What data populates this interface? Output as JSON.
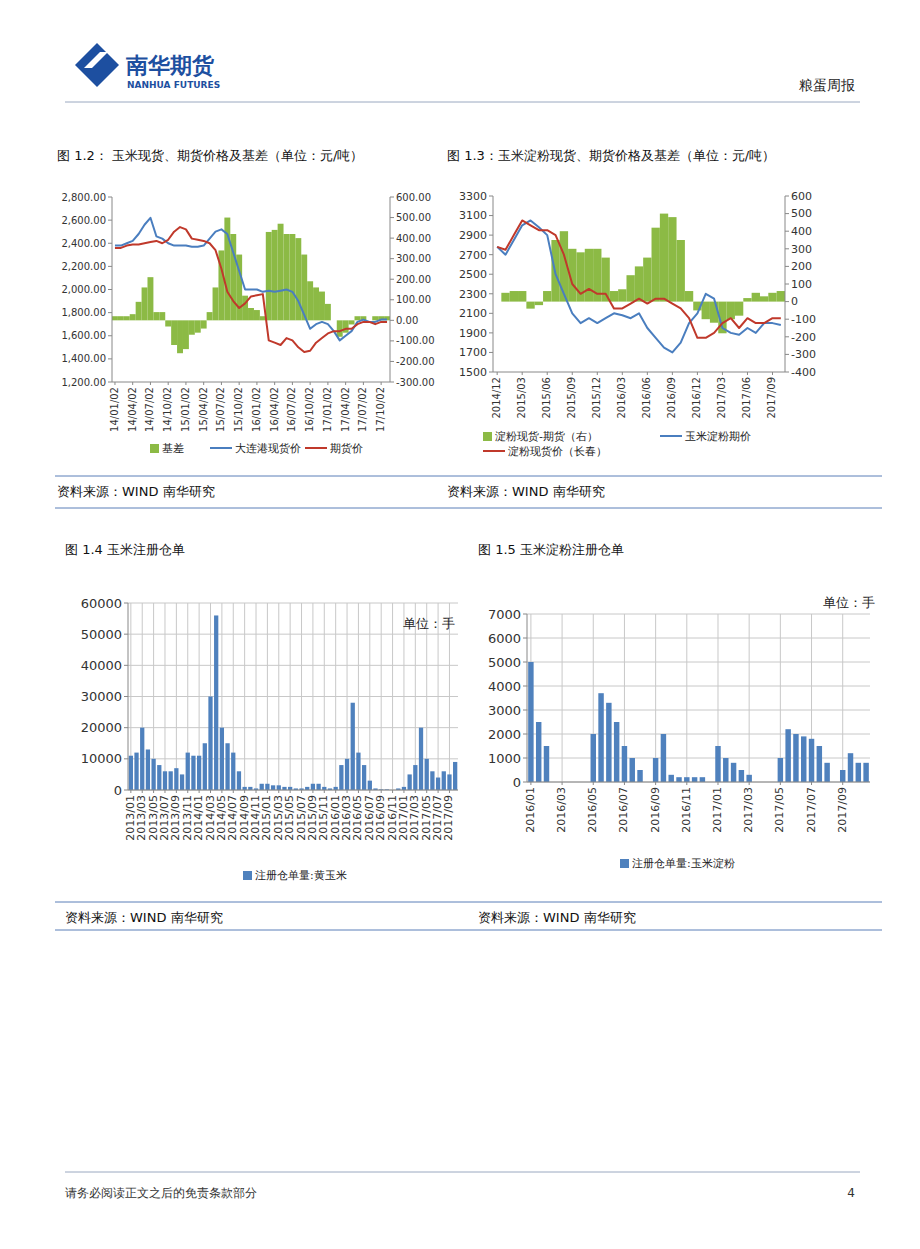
{
  "header": {
    "logo_cn": "南华期货",
    "logo_en": "NANHUA FUTURES",
    "report": "粮蛋周报"
  },
  "footer": {
    "disclaimer": "请务必阅读正文之后的免责条款部分",
    "page": 4
  },
  "chart_data": [
    {
      "type": "line",
      "title": "图 1.2： 玉米现货、期货价格及基差（单位：元/吨）",
      "source": "资料来源：WIND 南华研究",
      "categories": [
        "14/01/02",
        null,
        null,
        "14/04/02",
        null,
        null,
        "14/07/02",
        null,
        null,
        "14/10/02",
        null,
        null,
        "15/01/02",
        null,
        null,
        "15/04/02",
        null,
        null,
        "15/07/02",
        null,
        null,
        "15/10/02",
        null,
        null,
        "16/01/02",
        null,
        null,
        "16/04/02",
        null,
        null,
        "16/07/02",
        null,
        null,
        "16/10/02",
        null,
        null,
        "17/01/02",
        null,
        null,
        "17/04/02",
        null,
        null,
        "17/07/02",
        null,
        null,
        "17/10/02",
        null
      ],
      "series": [
        {
          "name": "基差",
          "type": "bar",
          "axis": "y2",
          "color": "#8cba45",
          "values": [
            20,
            20,
            20,
            30,
            90,
            160,
            210,
            40,
            40,
            -30,
            -120,
            -160,
            -140,
            -70,
            -60,
            -40,
            40,
            160,
            340,
            500,
            420,
            320,
            120,
            60,
            50,
            20,
            430,
            440,
            470,
            420,
            420,
            400,
            320,
            190,
            160,
            140,
            80,
            0,
            -80,
            -60,
            -20,
            20,
            20,
            0,
            20,
            20,
            20
          ]
        },
        {
          "name": "大连港现货价",
          "type": "line",
          "color": "#4a7ebf",
          "values": [
            2380,
            2380,
            2400,
            2420,
            2480,
            2560,
            2620,
            2460,
            2440,
            2400,
            2380,
            2380,
            2380,
            2370,
            2370,
            2380,
            2440,
            2500,
            2520,
            2480,
            2320,
            2160,
            2000,
            2000,
            2000,
            1980,
            1990,
            1980,
            1990,
            2000,
            1980,
            1900,
            1780,
            1660,
            1700,
            1720,
            1700,
            1640,
            1560,
            1600,
            1640,
            1720,
            1740,
            1720,
            1720,
            1740,
            1740
          ]
        },
        {
          "name": "期货价",
          "type": "line",
          "color": "#c0392b",
          "values": [
            2360,
            2360,
            2380,
            2390,
            2390,
            2400,
            2410,
            2420,
            2400,
            2430,
            2500,
            2540,
            2520,
            2440,
            2430,
            2420,
            2400,
            2340,
            2180,
            1980,
            1900,
            1840,
            1880,
            1940,
            1950,
            1960,
            1560,
            1540,
            1520,
            1580,
            1560,
            1500,
            1460,
            1470,
            1540,
            1580,
            1620,
            1640,
            1640,
            1660,
            1660,
            1700,
            1720,
            1720,
            1700,
            1720,
            1720
          ]
        }
      ],
      "ylim": [
        1200,
        2800
      ],
      "yticks": [
        {
          "value": 1200,
          "label": "1,200.00"
        },
        {
          "value": 1400,
          "label": "1,400.00"
        },
        {
          "value": 1600,
          "label": "1,600.00"
        },
        {
          "value": 1800,
          "label": "1,800.00"
        },
        {
          "value": 2000,
          "label": "2,000.00"
        },
        {
          "value": 2200,
          "label": "2,200.00"
        },
        {
          "value": 2400,
          "label": "2,400.00"
        },
        {
          "value": 2600,
          "label": "2,600.00"
        },
        {
          "value": 2800,
          "label": "2,800.00"
        }
      ],
      "y2lim": [
        -300,
        600
      ],
      "y2ticks": [
        {
          "value": -300,
          "label": "-300.00"
        },
        {
          "value": -200,
          "label": "-200.00"
        },
        {
          "value": -100,
          "label": "-100.00"
        },
        {
          "value": 0,
          "label": "0.00"
        },
        {
          "value": 100,
          "label": "100.00"
        },
        {
          "value": 200,
          "label": "200.00"
        },
        {
          "value": 300,
          "label": "300.00"
        },
        {
          "value": 400,
          "label": "400.00"
        },
        {
          "value": 500,
          "label": "500.00"
        },
        {
          "value": 600,
          "label": "600.00"
        }
      ],
      "grid": false,
      "legend": "bottom"
    },
    {
      "type": "line",
      "title": "图 1.3：玉米淀粉现货、期货价格及基差（单位：元/吨）",
      "source": "资料来源：WIND 南华研究",
      "categories": [
        "2014/12",
        null,
        null,
        "2015/03",
        null,
        null,
        "2015/06",
        null,
        null,
        "2015/09",
        null,
        null,
        "2015/12",
        null,
        null,
        "2016/03",
        null,
        null,
        "2016/06",
        null,
        null,
        "2016/09",
        null,
        null,
        "2016/12",
        null,
        null,
        "2017/03",
        null,
        null,
        "2017/06",
        null,
        null,
        "2017/09",
        null
      ],
      "series": [
        {
          "name": "淀粉现货-期货（右）",
          "type": "bar",
          "axis": "y2",
          "color": "#8cba45",
          "values": [
            0,
            50,
            60,
            60,
            -40,
            -20,
            60,
            350,
            400,
            300,
            280,
            300,
            300,
            250,
            60,
            70,
            150,
            200,
            250,
            420,
            500,
            480,
            350,
            60,
            -50,
            -100,
            -120,
            -180,
            -100,
            -80,
            20,
            50,
            30,
            50,
            60
          ]
        },
        {
          "name": "玉米淀粉期价",
          "type": "line",
          "color": "#4a7ebf",
          "values": [
            2780,
            2700,
            2850,
            3000,
            3050,
            2980,
            2900,
            2500,
            2300,
            2100,
            2000,
            2050,
            2000,
            2050,
            2100,
            2080,
            2050,
            2100,
            1950,
            1850,
            1750,
            1700,
            1800,
            2000,
            2100,
            2300,
            2250,
            1950,
            1900,
            1880,
            1950,
            1900,
            2000,
            2000,
            1980
          ]
        },
        {
          "name": "淀粉现货价（长春）",
          "type": "line",
          "color": "#c0392b",
          "values": [
            2780,
            2750,
            2900,
            3050,
            3000,
            2950,
            2950,
            2900,
            2700,
            2400,
            2300,
            2350,
            2300,
            2300,
            2150,
            2150,
            2200,
            2250,
            2200,
            2250,
            2250,
            2200,
            2150,
            2050,
            1850,
            1850,
            1900,
            2000,
            2050,
            1950,
            2050,
            2000,
            2000,
            2050,
            2050
          ]
        }
      ],
      "ylim": [
        1500,
        3300
      ],
      "yticks": [
        1500,
        1700,
        1900,
        2100,
        2300,
        2500,
        2700,
        2900,
        3100,
        3300
      ],
      "y2lim": [
        -400,
        600
      ],
      "y2ticks": [
        -400,
        -300,
        -200,
        -100,
        0,
        100,
        200,
        300,
        400,
        500,
        600
      ],
      "grid": false,
      "legend": "bottom"
    },
    {
      "type": "bar",
      "title": "图 1.4 玉米注册仓单",
      "source": "资料来源：WIND 南华研究",
      "y_label": "单位：手",
      "categories": [
        "2013/01",
        null,
        "2013/03",
        null,
        "2013/05",
        null,
        "2013/07",
        null,
        "2013/09",
        null,
        "2013/11",
        null,
        "2014/01",
        null,
        "2014/03",
        null,
        "2014/05",
        null,
        "2014/07",
        null,
        "2014/09",
        null,
        "2014/11",
        null,
        "2015/01",
        null,
        "2015/03",
        null,
        "2015/05",
        null,
        "2015/07",
        null,
        "2015/09",
        null,
        "2015/11",
        null,
        "2016/01",
        null,
        "2016/03",
        null,
        "2016/05",
        null,
        "2016/07",
        null,
        "2016/09",
        null,
        "2016/11",
        null,
        "2017/01",
        null,
        "2017/03",
        null,
        "2017/05",
        null,
        "2017/07",
        null,
        "2017/09",
        null
      ],
      "series": [
        {
          "name": "注册仓单量:黄玉米",
          "type": "bar",
          "color": "#4f81bd",
          "values": [
            11000,
            12000,
            20000,
            13000,
            10000,
            8000,
            6000,
            6000,
            7000,
            5000,
            12000,
            11000,
            11000,
            15000,
            30000,
            56000,
            20000,
            15000,
            12000,
            6000,
            1000,
            1000,
            500,
            2000,
            2000,
            1500,
            1500,
            1000,
            1000,
            500,
            500,
            1000,
            2000,
            2000,
            1000,
            500,
            1000,
            8000,
            10000,
            28000,
            12000,
            8000,
            3000,
            500,
            200,
            200,
            0,
            500,
            1000,
            5000,
            8000,
            20000,
            10000,
            6000,
            4000,
            6000,
            5000,
            9000
          ]
        }
      ],
      "ylim": [
        0,
        60000
      ],
      "yticks": [
        0,
        10000,
        20000,
        30000,
        40000,
        50000,
        60000
      ],
      "grid": true,
      "legend": "bottom"
    },
    {
      "type": "bar",
      "title": "图 1.5 玉米淀粉注册仓单",
      "source": "资料来源：WIND 南华研究",
      "y_label": "单位：手",
      "categories": [
        "2016/01",
        null,
        null,
        null,
        "2016/03",
        null,
        null,
        null,
        "2016/05",
        null,
        null,
        null,
        "2016/07",
        null,
        null,
        null,
        "2016/09",
        null,
        null,
        null,
        "2016/11",
        null,
        null,
        null,
        "2017/01",
        null,
        null,
        null,
        "2017/03",
        null,
        null,
        null,
        "2017/05",
        null,
        null,
        null,
        "2017/07",
        null,
        null,
        null,
        "2017/09",
        null,
        null,
        null
      ],
      "series": [
        {
          "name": "注册仓单量:玉米淀粉",
          "type": "bar",
          "color": "#4f81bd",
          "values": [
            5000,
            2500,
            1500,
            0,
            0,
            0,
            0,
            0,
            2000,
            3700,
            3300,
            2500,
            1500,
            1000,
            500,
            0,
            1000,
            2000,
            300,
            200,
            200,
            200,
            200,
            0,
            1500,
            1000,
            800,
            500,
            300,
            0,
            0,
            0,
            1000,
            2200,
            2000,
            1900,
            1800,
            1500,
            800,
            0,
            500,
            1200,
            800,
            800
          ]
        }
      ],
      "ylim": [
        0,
        7000
      ],
      "yticks": [
        0,
        1000,
        2000,
        3000,
        4000,
        5000,
        6000,
        7000
      ],
      "grid": true,
      "legend": "bottom"
    }
  ]
}
